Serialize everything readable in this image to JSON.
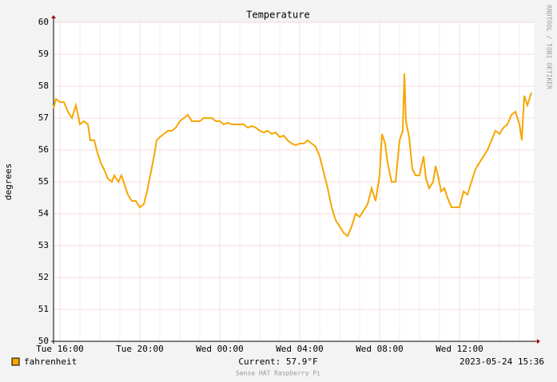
{
  "chart_data": {
    "type": "line",
    "title": "Temperature",
    "y_label": "degrees",
    "side_note": "RRDTOOL / TOBI OETIKER",
    "footer": "Sense HAT Raspberry Pi",
    "current": "Current: 57.9°F",
    "timestamp": "2023-05-24 15:36",
    "grid": true,
    "xlim": [
      15.68,
      39.72
    ],
    "xticks": [
      {
        "value": 16,
        "label": "Tue 16:00"
      },
      {
        "value": 20,
        "label": "Tue 20:00"
      },
      {
        "value": 24,
        "label": "Wed 00:00"
      },
      {
        "value": 28,
        "label": "Wed 04:00"
      },
      {
        "value": 32,
        "label": "Wed 08:00"
      },
      {
        "value": 36,
        "label": "Wed 12:00"
      }
    ],
    "x_minor_ticks": [
      16,
      17,
      18,
      19,
      20,
      21,
      22,
      23,
      24,
      25,
      26,
      27,
      28,
      29,
      30,
      31,
      32,
      33,
      34,
      35,
      36,
      37,
      38,
      39
    ],
    "ylim": [
      50,
      60
    ],
    "yticks": [
      50,
      51,
      52,
      53,
      54,
      55,
      56,
      57,
      58,
      59,
      60
    ],
    "x": [
      15.68,
      15.8,
      16,
      16.2,
      16.4,
      16.6,
      16.8,
      17,
      17.2,
      17.4,
      17.52,
      17.72,
      17.88,
      18.04,
      18.2,
      18.4,
      18.6,
      18.72,
      18.92,
      19.08,
      19.24,
      19.4,
      19.6,
      19.8,
      20,
      20.2,
      20.36,
      20.52,
      20.68,
      20.84,
      21,
      21.2,
      21.4,
      21.6,
      21.8,
      22,
      22.2,
      22.4,
      22.6,
      22.8,
      23,
      23.2,
      23.4,
      23.6,
      23.8,
      24,
      24.2,
      24.4,
      24.6,
      24.8,
      25,
      25.2,
      25.4,
      25.6,
      25.8,
      26,
      26.2,
      26.4,
      26.6,
      26.8,
      27,
      27.2,
      27.4,
      27.6,
      27.8,
      28,
      28.2,
      28.4,
      28.6,
      28.8,
      29,
      29.2,
      29.4,
      29.6,
      29.8,
      30,
      30.2,
      30.4,
      30.6,
      30.8,
      31,
      31.2,
      31.4,
      31.6,
      31.8,
      32,
      32.12,
      32.28,
      32.4,
      32.6,
      32.8,
      33,
      33.16,
      33.24,
      33.32,
      33.48,
      33.64,
      33.8,
      34,
      34.2,
      34.32,
      34.48,
      34.68,
      34.8,
      34.92,
      35.08,
      35.24,
      35.4,
      35.6,
      35.8,
      36,
      36.2,
      36.4,
      36.6,
      36.8,
      37,
      37.2,
      37.4,
      37.6,
      37.8,
      38,
      38.2,
      38.4,
      38.6,
      38.8,
      39,
      39.12,
      39.24,
      39.4,
      39.6
    ],
    "series": [
      {
        "name": "fahrenheit",
        "color": "#f5a700",
        "values": [
          57.3,
          57.6,
          57.5,
          57.5,
          57.2,
          57.0,
          57.4,
          56.8,
          56.9,
          56.8,
          56.3,
          56.3,
          55.9,
          55.6,
          55.4,
          55.1,
          55.0,
          55.2,
          55.0,
          55.2,
          54.9,
          54.6,
          54.4,
          54.4,
          54.2,
          54.3,
          54.7,
          55.2,
          55.7,
          56.3,
          56.4,
          56.5,
          56.6,
          56.6,
          56.7,
          56.9,
          57.0,
          57.1,
          56.9,
          56.9,
          56.9,
          57.0,
          57.0,
          57.0,
          56.9,
          56.9,
          56.8,
          56.85,
          56.8,
          56.8,
          56.8,
          56.8,
          56.7,
          56.75,
          56.7,
          56.6,
          56.55,
          56.6,
          56.5,
          56.55,
          56.4,
          56.45,
          56.3,
          56.2,
          56.15,
          56.2,
          56.2,
          56.3,
          56.2,
          56.1,
          55.8,
          55.3,
          54.8,
          54.2,
          53.8,
          53.6,
          53.4,
          53.3,
          53.6,
          54.0,
          53.9,
          54.1,
          54.3,
          54.8,
          54.4,
          55.2,
          56.5,
          56.2,
          55.6,
          55.0,
          55.0,
          56.3,
          56.6,
          58.4,
          56.9,
          56.4,
          55.4,
          55.2,
          55.2,
          55.8,
          55.1,
          54.8,
          55.0,
          55.5,
          55.2,
          54.7,
          54.8,
          54.5,
          54.2,
          54.2,
          54.2,
          54.7,
          54.6,
          55.0,
          55.4,
          55.6,
          55.8,
          56.0,
          56.3,
          56.6,
          56.5,
          56.7,
          56.8,
          57.1,
          57.2,
          56.8,
          56.3,
          57.7,
          57.4,
          57.8
        ]
      }
    ]
  }
}
